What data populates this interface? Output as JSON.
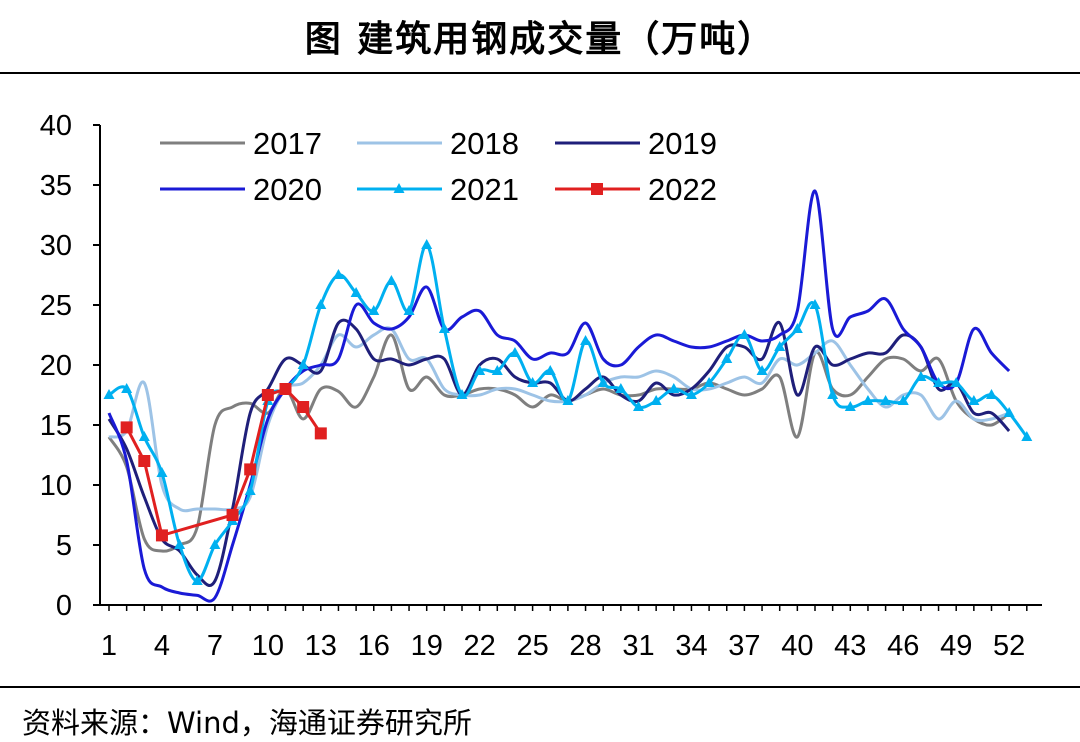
{
  "title": "图  建筑用钢成交量（万吨）",
  "source": "资料来源：Wind，海通证券研究所",
  "chart_data": {
    "type": "line",
    "title": "建筑用钢成交量（万吨）",
    "xlabel": "",
    "ylabel": "",
    "xlim": [
      1,
      53
    ],
    "ylim": [
      0,
      40
    ],
    "x_ticks": [
      1,
      4,
      7,
      10,
      13,
      16,
      19,
      22,
      25,
      28,
      31,
      34,
      37,
      40,
      43,
      46,
      49,
      52
    ],
    "y_ticks": [
      0,
      5,
      10,
      15,
      20,
      25,
      30,
      35,
      40
    ],
    "legend_position": "top-left",
    "series": [
      {
        "name": "2017",
        "color": "#7f7f7f",
        "marker": "none",
        "x": [
          1,
          2,
          3,
          4,
          5,
          6,
          7,
          8,
          9,
          10,
          11,
          12,
          13,
          14,
          15,
          16,
          17,
          18,
          19,
          20,
          21,
          22,
          23,
          24,
          25,
          26,
          27,
          28,
          29,
          30,
          31,
          32,
          33,
          34,
          35,
          36,
          37,
          38,
          39,
          40,
          41,
          42,
          43,
          44,
          45,
          46,
          47,
          48,
          49,
          50,
          51,
          52
        ],
        "values": [
          14,
          11.5,
          5.5,
          4.5,
          5,
          6.5,
          15,
          16.5,
          16.8,
          16,
          18,
          15.5,
          18,
          17.8,
          16.5,
          19,
          22.5,
          18,
          19,
          17.5,
          17.5,
          18,
          18,
          17.5,
          16.5,
          17.5,
          17,
          17.5,
          18,
          17.5,
          17.5,
          18,
          18,
          18,
          18.5,
          18,
          17.5,
          18,
          19,
          14,
          21,
          18,
          17.5,
          19,
          20.5,
          20.5,
          19.5,
          20.5,
          17,
          15.5,
          15,
          16
        ]
      },
      {
        "name": "2018",
        "color": "#9dc3e6",
        "marker": "none",
        "x": [
          1,
          2,
          3,
          4,
          5,
          6,
          7,
          8,
          9,
          10,
          11,
          12,
          13,
          14,
          15,
          16,
          17,
          18,
          19,
          20,
          21,
          22,
          23,
          24,
          25,
          26,
          27,
          28,
          29,
          30,
          31,
          32,
          33,
          34,
          35,
          36,
          37,
          38,
          39,
          40,
          41,
          42,
          43,
          44,
          45,
          46,
          47,
          48,
          49,
          50,
          51,
          52
        ],
        "values": [
          14,
          14.5,
          18.5,
          10,
          8,
          8,
          8,
          8,
          9,
          15,
          18,
          18.5,
          20,
          22.5,
          21.5,
          22.5,
          23,
          20.5,
          20.5,
          18,
          17.5,
          17.5,
          18,
          18,
          17.5,
          17,
          17,
          17.5,
          18.5,
          19,
          19,
          19.5,
          19,
          18,
          18,
          18.5,
          19,
          18.5,
          20.5,
          20,
          21,
          22,
          20,
          18,
          16.5,
          17.5,
          17.5,
          15.5,
          17,
          15.5,
          15.5,
          16
        ]
      },
      {
        "name": "2019",
        "color": "#1f1f7a",
        "marker": "none",
        "x": [
          1,
          2,
          3,
          4,
          5,
          6,
          7,
          8,
          9,
          10,
          11,
          12,
          13,
          14,
          15,
          16,
          17,
          18,
          19,
          20,
          21,
          22,
          23,
          24,
          25,
          26,
          27,
          28,
          29,
          30,
          31,
          32,
          33,
          34,
          35,
          36,
          37,
          38,
          39,
          40,
          41,
          42,
          43,
          44,
          45,
          46,
          47,
          48,
          49,
          50,
          51,
          52
        ],
        "values": [
          15.5,
          13,
          9,
          5.5,
          4.5,
          2.5,
          2,
          8,
          16,
          18,
          20.5,
          20,
          19.5,
          23.5,
          23,
          20.5,
          20.5,
          20,
          20.5,
          20.5,
          17.5,
          20,
          20.5,
          19,
          18.5,
          18.5,
          17,
          18,
          19,
          17.5,
          17,
          18.5,
          17.5,
          18,
          19.5,
          21.5,
          21.5,
          20.5,
          23.5,
          17.5,
          21.5,
          20,
          20.5,
          21,
          21,
          22.5,
          21.5,
          18,
          18.5,
          16,
          16,
          14.5
        ]
      },
      {
        "name": "2020",
        "color": "#1a1ad6",
        "marker": "none",
        "x": [
          1,
          2,
          3,
          4,
          5,
          6,
          7,
          8,
          9,
          10,
          11,
          12,
          13,
          14,
          15,
          16,
          17,
          18,
          19,
          20,
          21,
          22,
          23,
          24,
          25,
          26,
          27,
          28,
          29,
          30,
          31,
          32,
          33,
          34,
          35,
          36,
          37,
          38,
          39,
          40,
          41,
          42,
          43,
          44,
          45,
          46,
          47,
          48,
          49,
          50,
          51,
          52
        ],
        "values": [
          16,
          12,
          3,
          1.5,
          1,
          0.8,
          0.6,
          5,
          10,
          15.5,
          18,
          19.5,
          20,
          20.5,
          25,
          23.5,
          23,
          24,
          26.5,
          23,
          24,
          24.5,
          22.5,
          22,
          20.5,
          21,
          21,
          23.5,
          20.5,
          20,
          21.5,
          22.5,
          22,
          21.5,
          21.5,
          22,
          22.5,
          22,
          22.5,
          24.5,
          34.5,
          23,
          24,
          24.5,
          25.5,
          23,
          21.5,
          18.5,
          18.5,
          23,
          21,
          19.5
        ]
      },
      {
        "name": "2021",
        "color": "#00b0f0",
        "marker": "triangle",
        "x": [
          1,
          2,
          3,
          4,
          5,
          6,
          7,
          8,
          9,
          10,
          11,
          12,
          13,
          14,
          15,
          16,
          17,
          18,
          19,
          20,
          21,
          22,
          23,
          24,
          25,
          26,
          27,
          28,
          29,
          30,
          31,
          32,
          33,
          34,
          35,
          36,
          37,
          38,
          39,
          40,
          41,
          42,
          43,
          44,
          45,
          46,
          47,
          48,
          49,
          50,
          51,
          52,
          53
        ],
        "values": [
          17.5,
          18,
          14,
          11,
          5,
          2,
          5,
          7,
          9.5,
          17,
          18,
          20,
          25,
          27.5,
          26,
          24.5,
          27,
          24.5,
          30,
          23,
          17.5,
          19.5,
          19.5,
          21,
          18.5,
          19.5,
          17,
          22,
          18.5,
          18,
          16.5,
          17,
          18,
          17.5,
          18.5,
          20.5,
          22.5,
          19.5,
          21.5,
          23,
          25,
          17.5,
          16.5,
          17,
          17,
          17,
          19,
          18.5,
          18.5,
          17,
          17.5,
          16,
          14
        ]
      },
      {
        "name": "2022",
        "color": "#e02020",
        "marker": "square",
        "x": [
          2,
          3,
          4,
          8,
          9,
          10,
          11,
          12,
          13
        ],
        "values": [
          14.8,
          12,
          5.8,
          7.5,
          11.3,
          17.5,
          18,
          16.5,
          14.3
        ]
      }
    ]
  }
}
